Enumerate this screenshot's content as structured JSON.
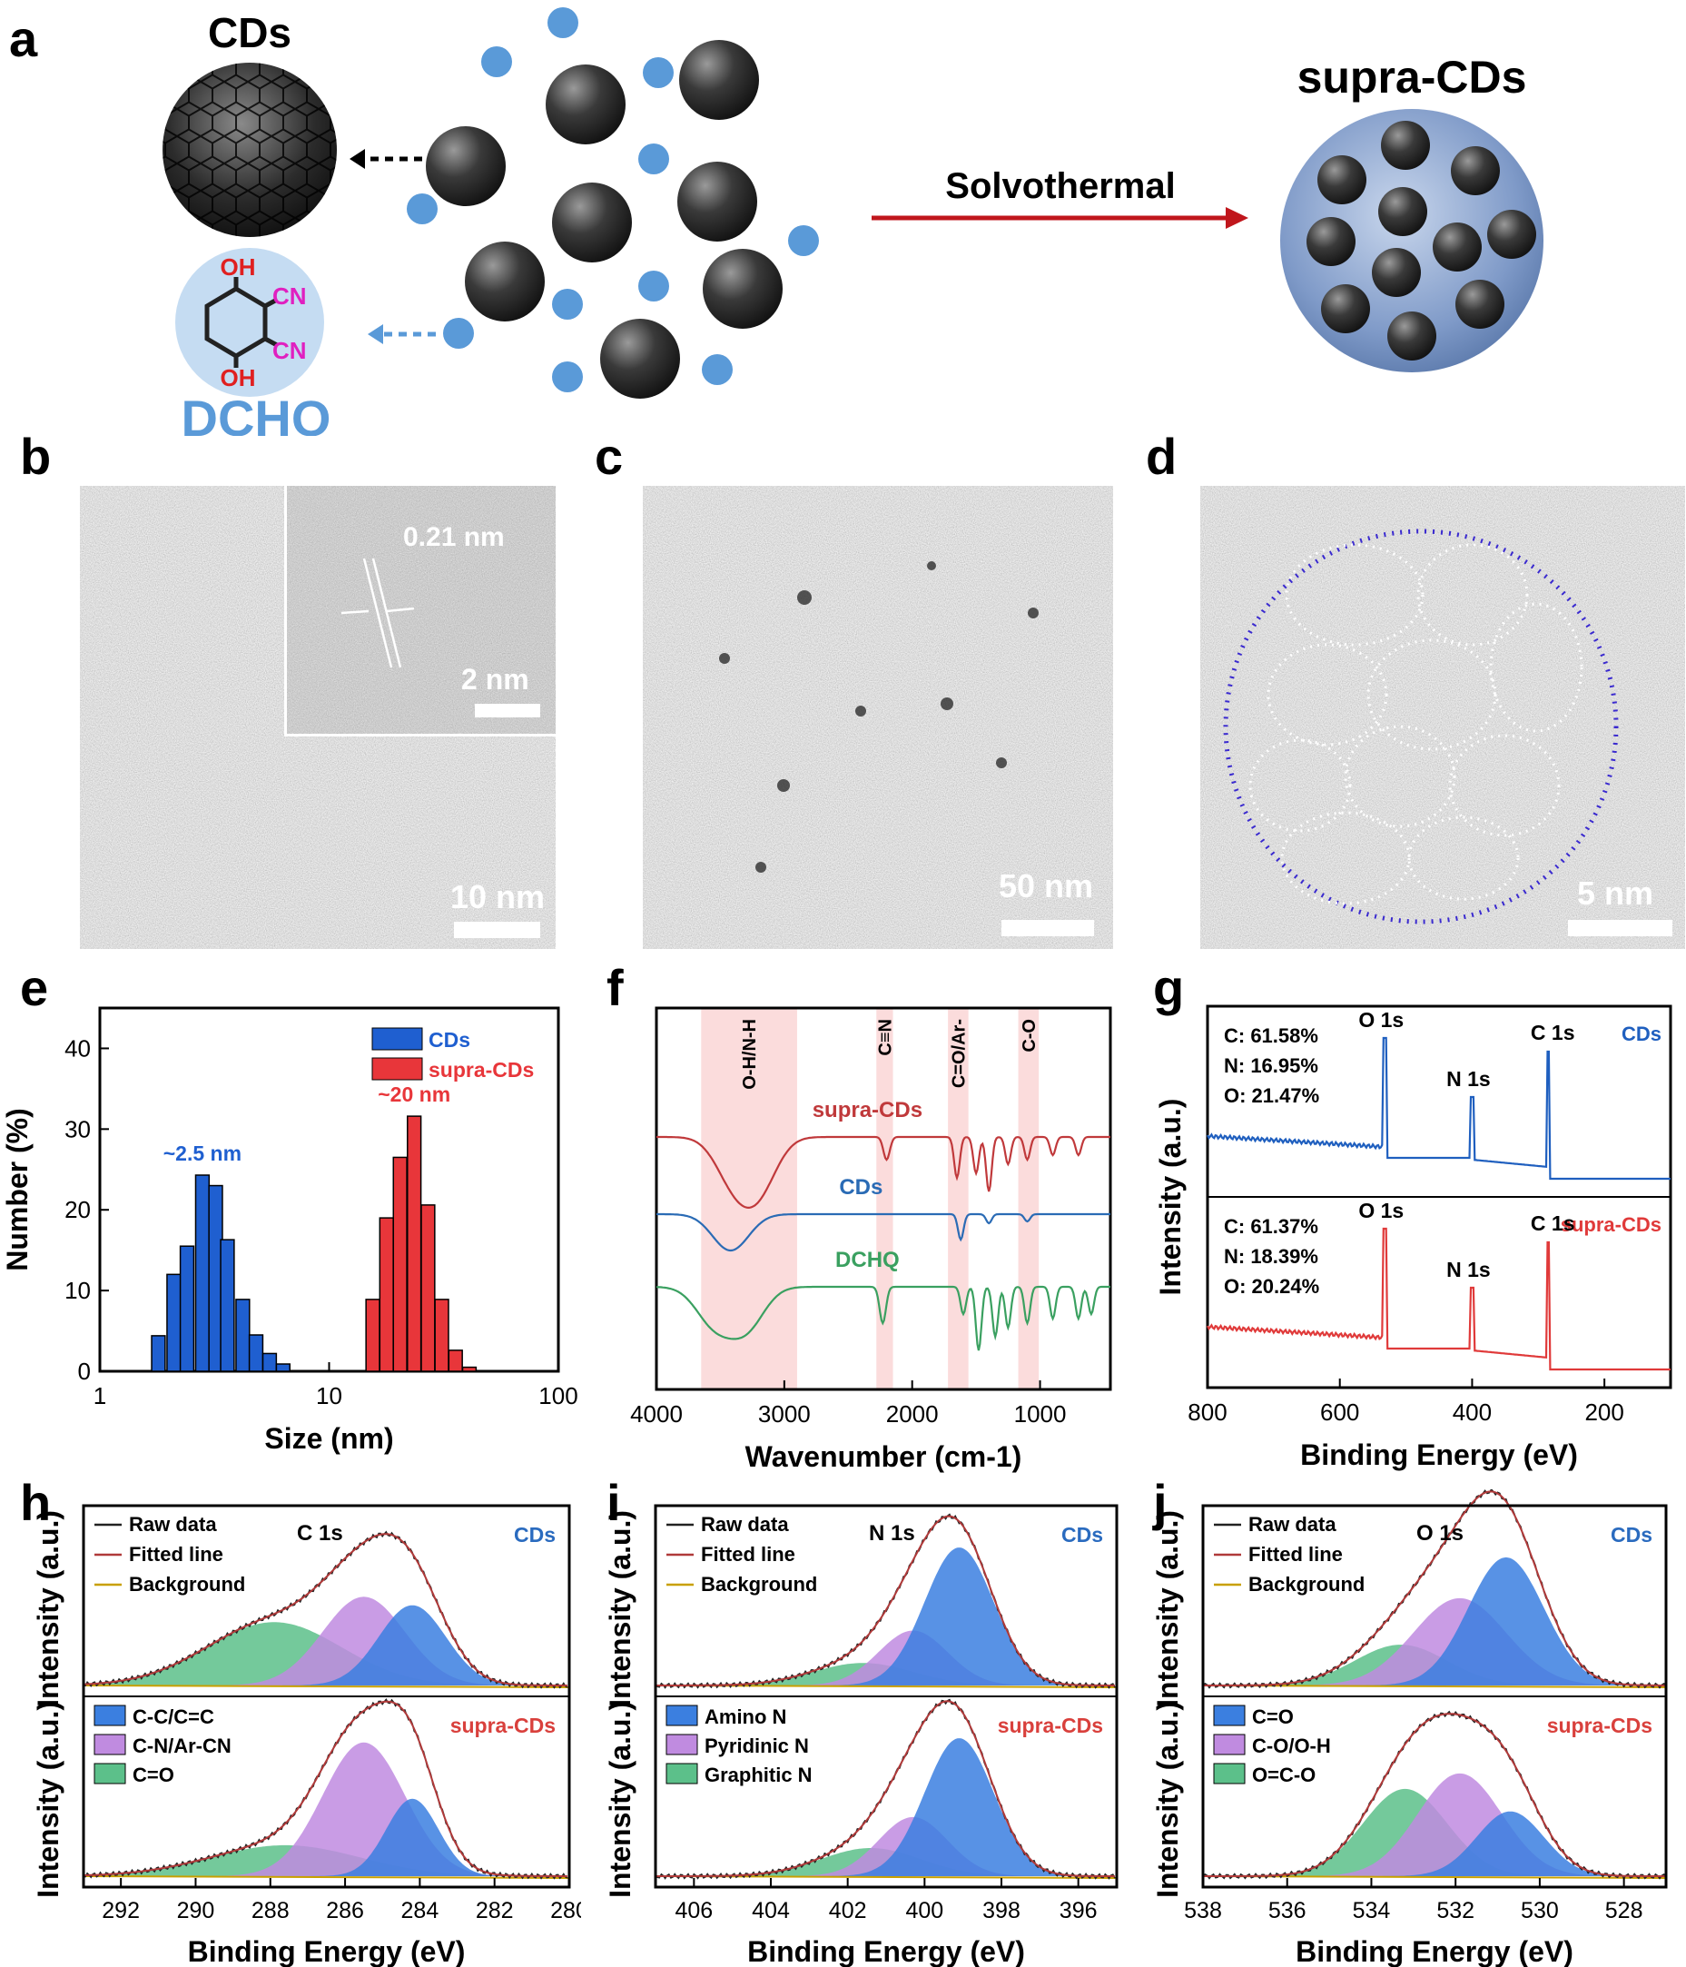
{
  "panel_labels": {
    "a": "a",
    "b": "b",
    "c": "c",
    "d": "d",
    "e": "e",
    "f": "f",
    "g": "g",
    "h": "h",
    "i": "i",
    "j": "j"
  },
  "panel_a": {
    "cds_title": "CDs",
    "supra_title": "supra-CDs",
    "arrow_label": "Solvothermal",
    "dchq_label": "DCHQ",
    "oh_top": "OH",
    "oh_bottom": "OH",
    "cn_1": "CN",
    "cn_2": "CN"
  },
  "panel_b": {
    "scale": "10 nm",
    "inset_scale": "2 nm",
    "lattice": "0.21 nm"
  },
  "panel_c": {
    "scale": "50 nm"
  },
  "panel_d": {
    "scale": "5 nm"
  },
  "chart_data": [
    {
      "panel": "e",
      "type": "bar",
      "xlabel": "Size (nm)",
      "ylabel": "Number (%)",
      "xscale": "log",
      "xlim": [
        1,
        100
      ],
      "ylim": [
        0,
        45
      ],
      "xticks": [
        "1",
        "10",
        "100"
      ],
      "yticks": [
        "0",
        "10",
        "20",
        "30",
        "40"
      ],
      "series": [
        {
          "name": "CDs",
          "color": "#1f5fd0",
          "annotation": "~2.5 nm",
          "bins": [
            1.8,
            2.1,
            2.4,
            2.8,
            3.2,
            3.6,
            4.2,
            4.8,
            5.5,
            6.3
          ],
          "values": [
            4.4,
            12.0,
            15.5,
            24.3,
            23.0,
            16.3,
            8.9,
            4.5,
            2.2,
            0.9
          ]
        },
        {
          "name": "supra-CDs",
          "color": "#e8363a",
          "annotation": "~20 nm",
          "bins": [
            15.5,
            17.8,
            20.4,
            23.5,
            27.0,
            31.0,
            35.6,
            40.9
          ],
          "values": [
            8.9,
            19.0,
            26.5,
            31.6,
            20.6,
            8.9,
            2.6,
            0.5
          ]
        }
      ],
      "legend_position": "top-right"
    },
    {
      "panel": "f",
      "type": "line",
      "xlabel": "Wavenumber (cm-1)",
      "xlim": [
        4000,
        450
      ],
      "xticks": [
        "4000",
        "3000",
        "2000",
        "1000"
      ],
      "series": [
        {
          "name": "supra-CDs",
          "color": "#c0393b"
        },
        {
          "name": "CDs",
          "color": "#2a6bb5"
        },
        {
          "name": "DCHQ",
          "color": "#3aa060"
        }
      ],
      "bands": [
        {
          "label": "O-H/N-H",
          "range": [
            3650,
            2900
          ]
        },
        {
          "label": "C≡N",
          "range": [
            2280,
            2150
          ]
        },
        {
          "label": "C=O/Ar-",
          "range": [
            1720,
            1560
          ]
        },
        {
          "label": "C-O",
          "range": [
            1170,
            1010
          ]
        }
      ]
    },
    {
      "panel": "g",
      "type": "line",
      "xlabel": "Binding Energy (eV)",
      "ylabel": "Intensity (a.u.)",
      "xlim": [
        800,
        100
      ],
      "xticks": [
        "800",
        "600",
        "400",
        "200"
      ],
      "series": [
        {
          "name": "CDs",
          "color": "#1f5fbf",
          "composition": [
            "C: 61.58%",
            "N: 16.95%",
            "O: 21.47%"
          ],
          "peaks": [
            {
              "label": "O 1s",
              "x": 532
            },
            {
              "label": "N 1s",
              "x": 400
            },
            {
              "label": "C 1s",
              "x": 285
            }
          ]
        },
        {
          "name": "supra-CDs",
          "color": "#e03a3a",
          "composition": [
            "C: 61.37%",
            "N: 18.39%",
            "O: 20.24%"
          ],
          "peaks": [
            {
              "label": "O 1s",
              "x": 532
            },
            {
              "label": "N 1s",
              "x": 400
            },
            {
              "label": "C 1s",
              "x": 285
            }
          ]
        }
      ]
    },
    {
      "panel": "h",
      "type": "area",
      "title": "C 1s",
      "xlabel": "Binding Energy (eV)",
      "ylabel": "Intensity (a.u.)",
      "xlim": [
        293,
        280
      ],
      "xticks": [
        "292",
        "290",
        "288",
        "286",
        "284",
        "282",
        "280"
      ],
      "legend_lines": [
        "Raw data",
        "Fitted line",
        "Background"
      ],
      "legend_components": [
        "C-C/C=C",
        "C-N/Ar-CN",
        "C=O"
      ],
      "samples": [
        {
          "name": "CDs",
          "components": [
            {
              "center": 284.2,
              "height": 0.57,
              "width": 0.9
            },
            {
              "center": 285.5,
              "height": 0.63,
              "width": 1.1
            },
            {
              "center": 287.9,
              "height": 0.45,
              "width": 1.8
            }
          ]
        },
        {
          "name": "supra-CDs",
          "components": [
            {
              "center": 284.2,
              "height": 0.55,
              "width": 0.7
            },
            {
              "center": 285.5,
              "height": 0.95,
              "width": 1.1
            },
            {
              "center": 287.6,
              "height": 0.22,
              "width": 2.0
            }
          ]
        }
      ]
    },
    {
      "panel": "i",
      "type": "area",
      "title": "N 1s",
      "xlabel": "Binding Energy (eV)",
      "ylabel": "Intensity (a.u.)",
      "xlim": [
        407,
        395
      ],
      "xticks": [
        "406",
        "404",
        "402",
        "400",
        "398",
        "396"
      ],
      "legend_lines": [
        "Raw data",
        "Fitted line",
        "Background"
      ],
      "legend_components": [
        "Amino N",
        "Pyridinic N",
        "Graphitic N"
      ],
      "samples": [
        {
          "name": "CDs",
          "components": [
            {
              "center": 399.1,
              "height": 0.98,
              "width": 0.9
            },
            {
              "center": 400.3,
              "height": 0.39,
              "width": 0.9
            },
            {
              "center": 401.6,
              "height": 0.16,
              "width": 1.3
            }
          ]
        },
        {
          "name": "supra-CDs",
          "components": [
            {
              "center": 399.1,
              "height": 0.98,
              "width": 0.9
            },
            {
              "center": 400.3,
              "height": 0.42,
              "width": 0.9
            },
            {
              "center": 401.4,
              "height": 0.2,
              "width": 1.3
            }
          ]
        }
      ]
    },
    {
      "panel": "j",
      "type": "area",
      "title": "O 1s",
      "xlabel": "Binding Energy (eV)",
      "ylabel": "Intensity (a.u.)",
      "xlim": [
        538,
        527
      ],
      "xticks": [
        "538",
        "536",
        "534",
        "532",
        "530",
        "528"
      ],
      "legend_lines": [
        "Raw data",
        "Fitted line",
        "Background"
      ],
      "legend_components": [
        "C=O",
        "C-O/O-H",
        "O=C-O"
      ],
      "samples": [
        {
          "name": "CDs",
          "components": [
            {
              "center": 530.8,
              "height": 0.91,
              "width": 0.9
            },
            {
              "center": 531.9,
              "height": 0.62,
              "width": 1.1
            },
            {
              "center": 533.3,
              "height": 0.29,
              "width": 1.1
            }
          ]
        },
        {
          "name": "supra-CDs",
          "components": [
            {
              "center": 530.7,
              "height": 0.46,
              "width": 0.8
            },
            {
              "center": 531.9,
              "height": 0.73,
              "width": 1.0
            },
            {
              "center": 533.2,
              "height": 0.62,
              "width": 1.0
            }
          ]
        }
      ]
    }
  ],
  "colors": {
    "cds_blue": "#2a6bbf",
    "supra_red": "#d9403c",
    "comp1": "#3b7fe0",
    "comp2": "#c08be0",
    "comp3": "#5cc08a",
    "fit": "#b03a3a",
    "bg_line": "#c8a000",
    "band": "#fbdcdc"
  }
}
